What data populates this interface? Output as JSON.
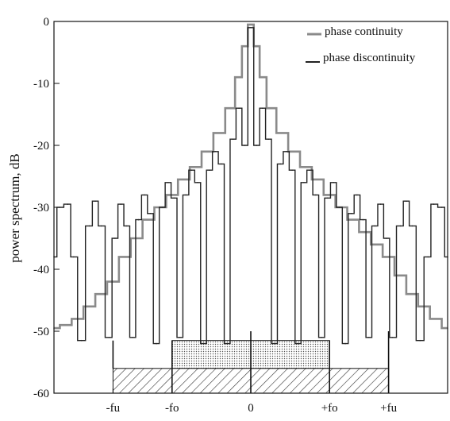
{
  "chart_data": {
    "type": "line",
    "title": "",
    "xlabel": "",
    "ylabel": "power spectrum, dB",
    "ylim": [
      -60,
      0
    ],
    "xlim": [
      -5,
      5
    ],
    "y_ticks": [
      0,
      -10,
      -20,
      -30,
      -40,
      -50,
      -60
    ],
    "y_tick_labels": [
      "0",
      "-10",
      "-20",
      "-30",
      "-40",
      "-50",
      "-60"
    ],
    "x_ticks": [
      -3.5,
      -2,
      0,
      2,
      3.5
    ],
    "x_tick_labels": [
      "-fu",
      "-fo",
      "0",
      "+fo",
      "+fu"
    ],
    "grid": false,
    "legend_position": "top-right",
    "series": [
      {
        "name": "phase continuity",
        "color": "#8a8a8a",
        "x": [
          -5.0,
          -4.7,
          -4.4,
          -4.1,
          -3.8,
          -3.5,
          -3.2,
          -2.9,
          -2.6,
          -2.3,
          -2.0,
          -1.7,
          -1.4,
          -1.1,
          -0.8,
          -0.5,
          -0.3,
          -0.15,
          0.0,
          0.15,
          0.3,
          0.5,
          0.8,
          1.1,
          1.4,
          1.7,
          2.0,
          2.3,
          2.6,
          2.9,
          3.2,
          3.5,
          3.8,
          4.1,
          4.4,
          4.7,
          5.0
        ],
        "y": [
          -49.5,
          -49,
          -48,
          -46,
          -44,
          -42,
          -38,
          -35,
          -32,
          -30,
          -28,
          -25.5,
          -23.5,
          -21,
          -18,
          -14,
          -9,
          -4,
          -0.5,
          -4,
          -9,
          -14,
          -18,
          -21,
          -23.5,
          -25.5,
          -28,
          -30,
          -32,
          -34,
          -36,
          -38,
          -41,
          -44,
          -46,
          -48,
          -49.5
        ]
      },
      {
        "name": "phase discontinuity",
        "color": "#222222",
        "x": [
          -5.0,
          -4.85,
          -4.65,
          -4.5,
          -4.3,
          -4.1,
          -3.95,
          -3.8,
          -3.6,
          -3.45,
          -3.3,
          -3.15,
          -3.0,
          -2.85,
          -2.7,
          -2.55,
          -2.4,
          -2.25,
          -2.1,
          -1.95,
          -1.8,
          -1.65,
          -1.5,
          -1.35,
          -1.2,
          -1.05,
          -0.9,
          -0.75,
          -0.6,
          -0.45,
          -0.3,
          -0.15,
          0.0,
          0.15,
          0.3,
          0.45,
          0.6,
          0.75,
          0.9,
          1.05,
          1.2,
          1.35,
          1.5,
          1.65,
          1.8,
          1.95,
          2.1,
          2.25,
          2.4,
          2.55,
          2.7,
          2.85,
          3.0,
          3.15,
          3.3,
          3.45,
          3.6,
          3.8,
          3.95,
          4.1,
          4.3,
          4.5,
          4.65,
          4.85,
          5.0
        ],
        "y": [
          -38,
          -30,
          -29.5,
          -38,
          -51.5,
          -33,
          -29,
          -33,
          -51,
          -35,
          -29.5,
          -33,
          -51,
          -32,
          -28,
          -31,
          -52,
          -30,
          -26,
          -28.5,
          -51,
          -28,
          -24,
          -26,
          -52,
          -24,
          -21,
          -23,
          -52,
          -19,
          -14,
          -20,
          -1,
          -20,
          -14,
          -19,
          -52,
          -23,
          -21,
          -24,
          -52,
          -26,
          -24,
          -28,
          -51,
          -28.5,
          -26,
          -30,
          -52,
          -31,
          -28,
          -32,
          -51,
          -33,
          -29.5,
          -35,
          -51,
          -33,
          -29,
          -33,
          -51.5,
          -38,
          -29.5,
          -30,
          -38
        ]
      }
    ],
    "annotations": [
      {
        "type": "bar",
        "fill": "dotted",
        "x_range": [
          -2,
          2
        ],
        "y_range": [
          -56,
          -51.5
        ]
      },
      {
        "type": "bar",
        "fill": "hatched",
        "x_range": [
          -3.5,
          3.5
        ],
        "y_range": [
          -60,
          -56
        ]
      }
    ]
  }
}
